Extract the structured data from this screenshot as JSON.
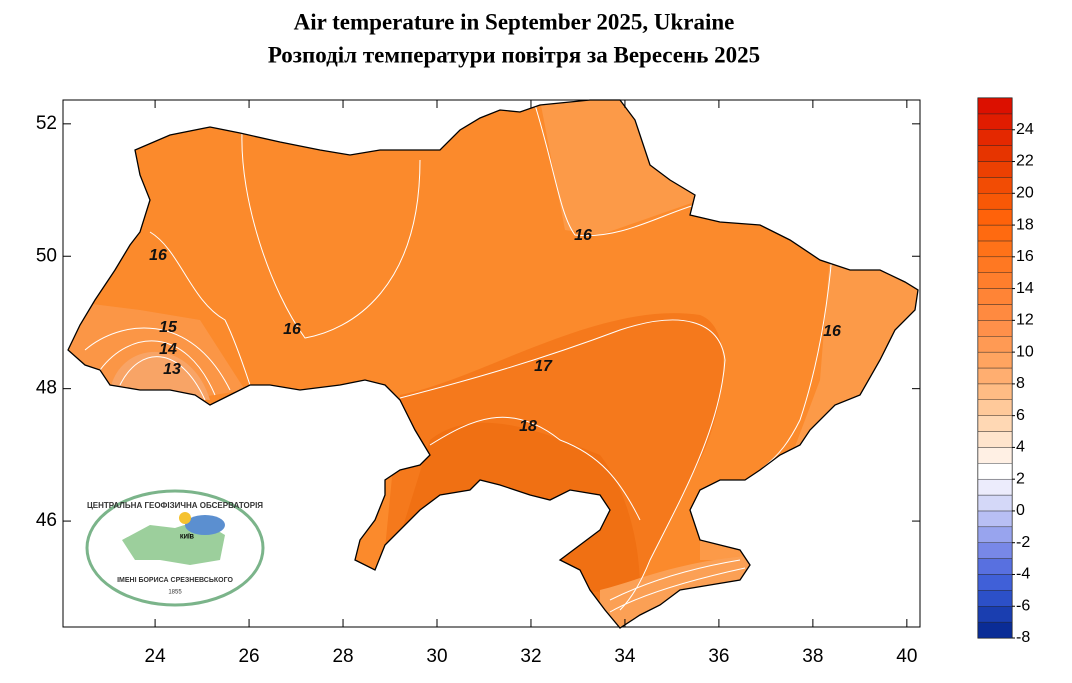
{
  "header": {
    "title": "Air temperature in September 2025, Ukraine",
    "subtitle": "Розподіл температури повітря за Вересень 2025"
  },
  "map": {
    "xlim": [
      22.04,
      40.28
    ],
    "ylim": [
      44.4,
      52.36
    ],
    "xticks": [
      24,
      26,
      28,
      30,
      32,
      34,
      36,
      38,
      40
    ],
    "yticks": [
      46,
      48,
      50,
      52
    ],
    "contour_labels": [
      16,
      16,
      15,
      14,
      13,
      16,
      17,
      18,
      16
    ]
  },
  "colorbar": {
    "lim": [
      -8,
      26
    ],
    "ticks": [
      -8,
      -6,
      -4,
      -2,
      0,
      2,
      4,
      6,
      8,
      10,
      12,
      14,
      16,
      18,
      20,
      22,
      24
    ],
    "colors": [
      "#0a2c96",
      "#1a3eb0",
      "#2c50c8",
      "#4060d8",
      "#5870e0",
      "#7888e8",
      "#98a4ee",
      "#b8bff4",
      "#d4d8f8",
      "#ececfc",
      "#ffffff",
      "#fff0e4",
      "#ffe4cc",
      "#ffd8b4",
      "#ffc99a",
      "#ffbc84",
      "#ffae70",
      "#ffa460",
      "#ff9a54",
      "#ff904a",
      "#ff8a40",
      "#ff8436",
      "#ff7e2c",
      "#ff7822",
      "#ff7218",
      "#ff6a10",
      "#ff620a",
      "#f85806",
      "#f24c04",
      "#ec4002",
      "#e63400",
      "#e42800",
      "#e01c00",
      "#dc1000"
    ]
  },
  "logo": {
    "top": "ЦЕНТРАЛЬНА ГЕОФІЗИЧНА ОБСЕРВАТОРІЯ",
    "bottom": "ІМЕНІ БОРИСА СРЕЗНЕВСЬКОГО",
    "year": "1855",
    "city": "КИЇВ"
  }
}
